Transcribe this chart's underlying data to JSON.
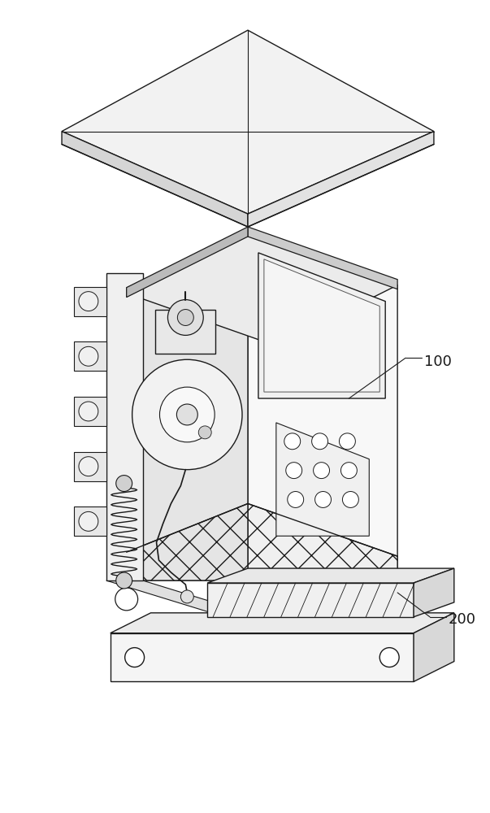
{
  "bg_color": "#ffffff",
  "line_color": "#1a1a1a",
  "line_width": 1.0,
  "label_100": "100",
  "label_200": "200",
  "figsize": [
    6.03,
    10.0
  ],
  "dpi": 100
}
